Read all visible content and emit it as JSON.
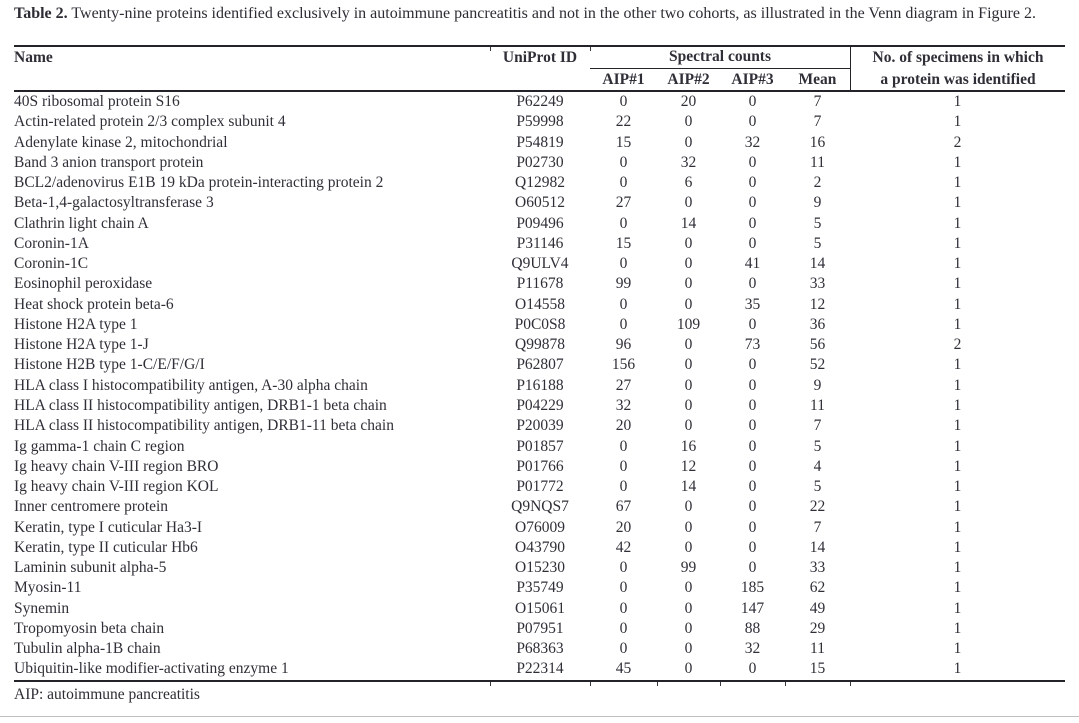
{
  "caption": {
    "label": "Table 2.",
    "text": " Twenty-nine proteins identified exclusively in autoimmune pancreatitis and not in the other two cohorts, as illustrated in the Venn diagram in Figure 2."
  },
  "table": {
    "headers": {
      "name": "Name",
      "uniprot": "UniProt ID",
      "spectral_group": "Spectral counts",
      "sub": [
        "AIP#1",
        "AIP#2",
        "AIP#3",
        "Mean"
      ],
      "specimens_line1": "No. of specimens in which",
      "specimens_line2": "a protein was identified"
    },
    "rows": [
      {
        "name": "40S ribosomal protein S16",
        "uniprot": "P62249",
        "aip1": "0",
        "aip2": "20",
        "aip3": "0",
        "mean": "7",
        "specimens": "1"
      },
      {
        "name": "Actin-related protein 2/3 complex subunit 4",
        "uniprot": "P59998",
        "aip1": "22",
        "aip2": "0",
        "aip3": "0",
        "mean": "7",
        "specimens": "1"
      },
      {
        "name": "Adenylate kinase 2, mitochondrial",
        "uniprot": "P54819",
        "aip1": "15",
        "aip2": "0",
        "aip3": "32",
        "mean": "16",
        "specimens": "2"
      },
      {
        "name": "Band 3 anion transport protein",
        "uniprot": "P02730",
        "aip1": "0",
        "aip2": "32",
        "aip3": "0",
        "mean": "11",
        "specimens": "1"
      },
      {
        "name": "BCL2/adenovirus E1B 19 kDa protein-interacting protein 2",
        "uniprot": "Q12982",
        "aip1": "0",
        "aip2": "6",
        "aip3": "0",
        "mean": "2",
        "specimens": "1"
      },
      {
        "name": "Beta-1,4-galactosyltransferase 3",
        "uniprot": "O60512",
        "aip1": "27",
        "aip2": "0",
        "aip3": "0",
        "mean": "9",
        "specimens": "1"
      },
      {
        "name": "Clathrin light chain A",
        "uniprot": "P09496",
        "aip1": "0",
        "aip2": "14",
        "aip3": "0",
        "mean": "5",
        "specimens": "1"
      },
      {
        "name": "Coronin-1A",
        "uniprot": "P31146",
        "aip1": "15",
        "aip2": "0",
        "aip3": "0",
        "mean": "5",
        "specimens": "1"
      },
      {
        "name": "Coronin-1C",
        "uniprot": "Q9ULV4",
        "aip1": "0",
        "aip2": "0",
        "aip3": "41",
        "mean": "14",
        "specimens": "1"
      },
      {
        "name": "Eosinophil peroxidase",
        "uniprot": "P11678",
        "aip1": "99",
        "aip2": "0",
        "aip3": "0",
        "mean": "33",
        "specimens": "1"
      },
      {
        "name": "Heat shock protein beta-6",
        "uniprot": "O14558",
        "aip1": "0",
        "aip2": "0",
        "aip3": "35",
        "mean": "12",
        "specimens": "1"
      },
      {
        "name": "Histone H2A type 1",
        "uniprot": "P0C0S8",
        "aip1": "0",
        "aip2": "109",
        "aip3": "0",
        "mean": "36",
        "specimens": "1"
      },
      {
        "name": "Histone H2A type 1-J",
        "uniprot": "Q99878",
        "aip1": "96",
        "aip2": "0",
        "aip3": "73",
        "mean": "56",
        "specimens": "2"
      },
      {
        "name": "Histone H2B type 1-C/E/F/G/I",
        "uniprot": "P62807",
        "aip1": "156",
        "aip2": "0",
        "aip3": "0",
        "mean": "52",
        "specimens": "1"
      },
      {
        "name": "HLA class I histocompatibility antigen, A-30 alpha chain",
        "uniprot": "P16188",
        "aip1": "27",
        "aip2": "0",
        "aip3": "0",
        "mean": "9",
        "specimens": "1"
      },
      {
        "name": "HLA class II histocompatibility antigen, DRB1-1 beta chain",
        "uniprot": "P04229",
        "aip1": "32",
        "aip2": "0",
        "aip3": "0",
        "mean": "11",
        "specimens": "1"
      },
      {
        "name": "HLA class II histocompatibility antigen, DRB1-11 beta chain",
        "uniprot": "P20039",
        "aip1": "20",
        "aip2": "0",
        "aip3": "0",
        "mean": "7",
        "specimens": "1"
      },
      {
        "name": "Ig gamma-1 chain C region",
        "uniprot": "P01857",
        "aip1": "0",
        "aip2": "16",
        "aip3": "0",
        "mean": "5",
        "specimens": "1"
      },
      {
        "name": "Ig heavy chain V-III region BRO",
        "uniprot": "P01766",
        "aip1": "0",
        "aip2": "12",
        "aip3": "0",
        "mean": "4",
        "specimens": "1"
      },
      {
        "name": "Ig heavy chain V-III region KOL",
        "uniprot": "P01772",
        "aip1": "0",
        "aip2": "14",
        "aip3": "0",
        "mean": "5",
        "specimens": "1"
      },
      {
        "name": "Inner centromere protein",
        "uniprot": "Q9NQS7",
        "aip1": "67",
        "aip2": "0",
        "aip3": "0",
        "mean": "22",
        "specimens": "1"
      },
      {
        "name": "Keratin, type I cuticular Ha3-I",
        "uniprot": "O76009",
        "aip1": "20",
        "aip2": "0",
        "aip3": "0",
        "mean": "7",
        "specimens": "1"
      },
      {
        "name": "Keratin, type II cuticular Hb6",
        "uniprot": "O43790",
        "aip1": "42",
        "aip2": "0",
        "aip3": "0",
        "mean": "14",
        "specimens": "1"
      },
      {
        "name": "Laminin subunit alpha-5",
        "uniprot": "O15230",
        "aip1": "0",
        "aip2": "99",
        "aip3": "0",
        "mean": "33",
        "specimens": "1"
      },
      {
        "name": "Myosin-11",
        "uniprot": "P35749",
        "aip1": "0",
        "aip2": "0",
        "aip3": "185",
        "mean": "62",
        "specimens": "1"
      },
      {
        "name": "Synemin",
        "uniprot": "O15061",
        "aip1": "0",
        "aip2": "0",
        "aip3": "147",
        "mean": "49",
        "specimens": "1"
      },
      {
        "name": "Tropomyosin beta chain",
        "uniprot": "P07951",
        "aip1": "0",
        "aip2": "0",
        "aip3": "88",
        "mean": "29",
        "specimens": "1"
      },
      {
        "name": "Tubulin alpha-1B chain",
        "uniprot": "P68363",
        "aip1": "0",
        "aip2": "0",
        "aip3": "32",
        "mean": "11",
        "specimens": "1"
      },
      {
        "name": "Ubiquitin-like modifier-activating enzyme 1",
        "uniprot": "P22314",
        "aip1": "45",
        "aip2": "0",
        "aip3": "0",
        "mean": "15",
        "specimens": "1"
      }
    ],
    "footnote": "AIP: autoimmune pancreatitis"
  },
  "colors": {
    "text": "#2f2f38",
    "rule": "#232329",
    "faint_rule": "#bfbfbf"
  }
}
